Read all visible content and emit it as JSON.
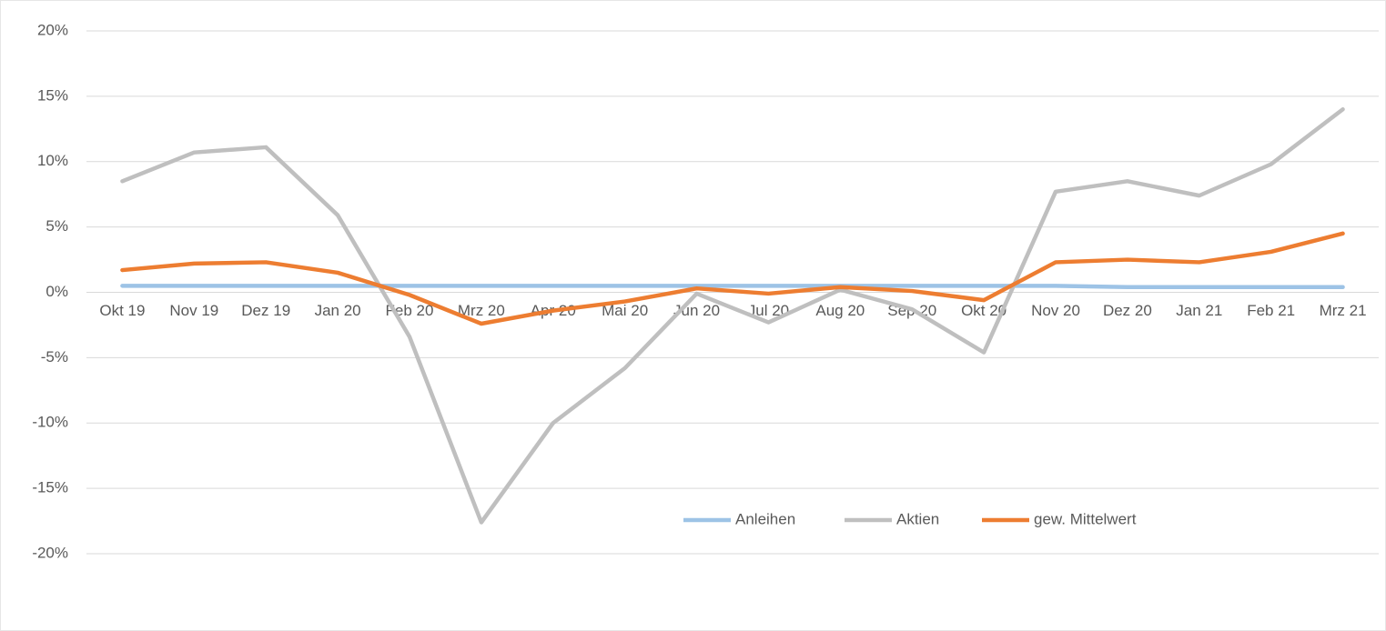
{
  "chart_data": {
    "type": "line",
    "categories": [
      "Okt 19",
      "Nov 19",
      "Dez 19",
      "Jan 20",
      "Feb 20",
      "Mrz 20",
      "Apr 20",
      "Mai 20",
      "Jun 20",
      "Jul 20",
      "Aug 20",
      "Sep 20",
      "Okt 20",
      "Nov 20",
      "Dez 20",
      "Jan 21",
      "Feb 21",
      "Mrz 21"
    ],
    "series": [
      {
        "name": "Anleihen",
        "color": "#9dc3e6",
        "values": [
          0.5,
          0.5,
          0.5,
          0.5,
          0.5,
          0.5,
          0.5,
          0.5,
          0.5,
          0.5,
          0.5,
          0.5,
          0.5,
          0.5,
          0.4,
          0.4,
          0.4,
          0.4
        ]
      },
      {
        "name": "Aktien",
        "color": "#bfbfbf",
        "values": [
          8.5,
          10.7,
          11.1,
          5.9,
          -3.4,
          -17.6,
          -10.0,
          -5.8,
          -0.1,
          -2.3,
          0.2,
          -1.3,
          -4.6,
          7.7,
          8.5,
          7.4,
          9.8,
          14.0
        ]
      },
      {
        "name": "gew. Mittelwert",
        "color": "#ed7d31",
        "values": [
          1.7,
          2.2,
          2.3,
          1.5,
          -0.2,
          -2.4,
          -1.4,
          -0.7,
          0.3,
          -0.1,
          0.4,
          0.1,
          -0.6,
          2.3,
          2.5,
          2.3,
          3.1,
          4.5
        ]
      }
    ],
    "ylim": [
      -20,
      20
    ],
    "yticks": [
      {
        "value": -20,
        "label": "-20%"
      },
      {
        "value": -15,
        "label": "-15%"
      },
      {
        "value": -10,
        "label": "-10%"
      },
      {
        "value": -5,
        "label": "-5%"
      },
      {
        "value": 0,
        "label": "0%"
      },
      {
        "value": 5,
        "label": "5%"
      },
      {
        "value": 10,
        "label": "10%"
      },
      {
        "value": 15,
        "label": "15%"
      },
      {
        "value": 20,
        "label": "20%"
      }
    ],
    "grid": true,
    "legend": "bottom"
  }
}
